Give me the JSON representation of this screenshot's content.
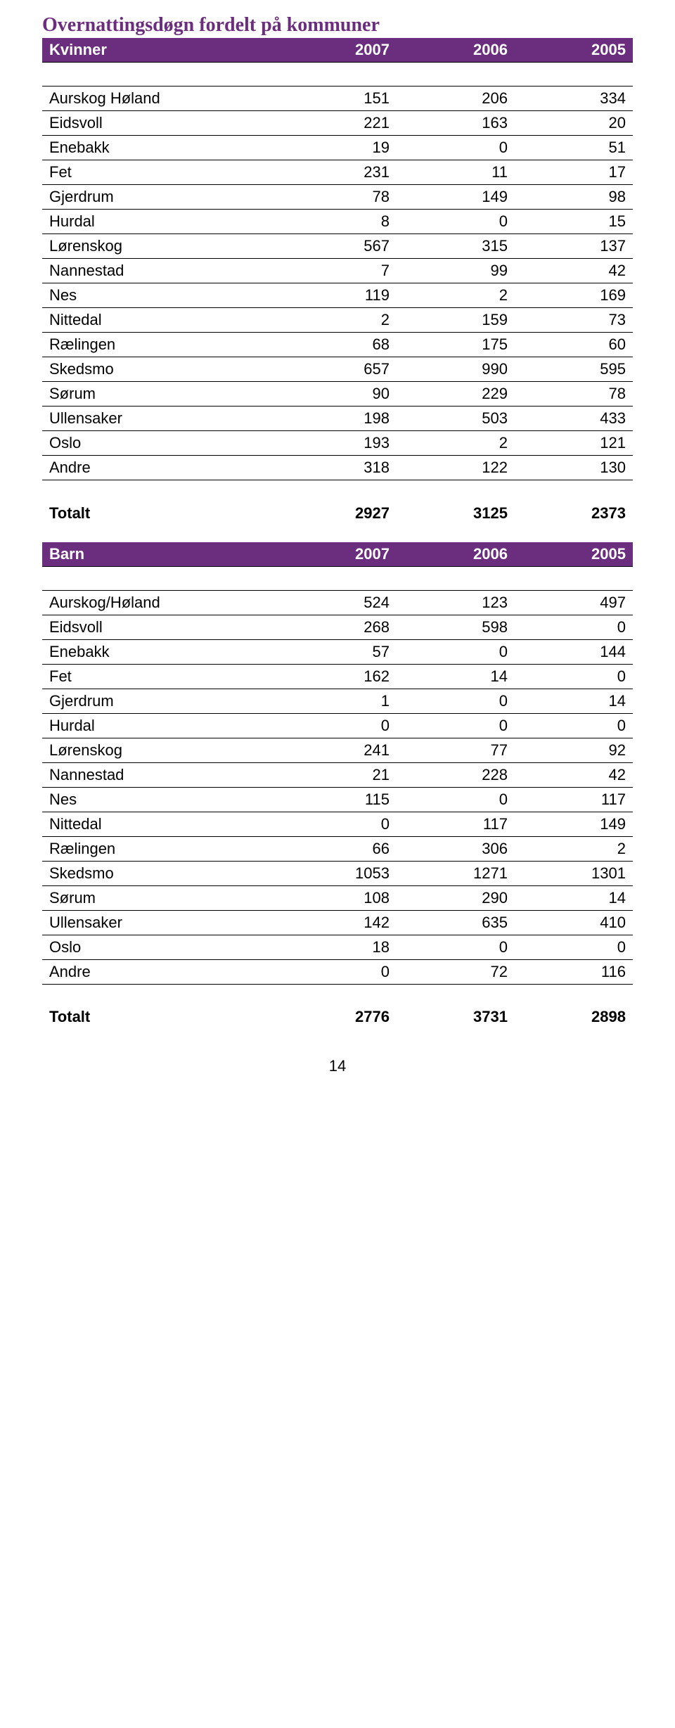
{
  "title": "Overnattingsdøgn fordelt på kommuner",
  "tables": [
    {
      "header": [
        "Kvinner",
        "2007",
        "2006",
        "2005"
      ],
      "rows": [
        [
          "Aurskog Høland",
          "151",
          "206",
          "334"
        ],
        [
          "Eidsvoll",
          "221",
          "163",
          "20"
        ],
        [
          "Enebakk",
          "19",
          "0",
          "51"
        ],
        [
          "Fet",
          "231",
          "11",
          "17"
        ],
        [
          "Gjerdrum",
          "78",
          "149",
          "98"
        ],
        [
          "Hurdal",
          "8",
          "0",
          "15"
        ],
        [
          "Lørenskog",
          "567",
          "315",
          "137"
        ],
        [
          "Nannestad",
          "7",
          "99",
          "42"
        ],
        [
          "Nes",
          "119",
          "2",
          "169"
        ],
        [
          "Nittedal",
          "2",
          "159",
          "73"
        ],
        [
          "Rælingen",
          "68",
          "175",
          "60"
        ],
        [
          "Skedsmo",
          "657",
          "990",
          "595"
        ],
        [
          "Sørum",
          "90",
          "229",
          "78"
        ],
        [
          "Ullensaker",
          "198",
          "503",
          "433"
        ],
        [
          "Oslo",
          "193",
          "2",
          "121"
        ],
        [
          "Andre",
          "318",
          "122",
          "130"
        ]
      ],
      "total": [
        "Totalt",
        "2927",
        "3125",
        "2373"
      ]
    },
    {
      "header": [
        "Barn",
        "2007",
        "2006",
        "2005"
      ],
      "rows": [
        [
          "Aurskog/Høland",
          "524",
          "123",
          "497"
        ],
        [
          "Eidsvoll",
          "268",
          "598",
          "0"
        ],
        [
          "Enebakk",
          "57",
          "0",
          "144"
        ],
        [
          "Fet",
          "162",
          "14",
          "0"
        ],
        [
          "Gjerdrum",
          "1",
          "0",
          "14"
        ],
        [
          "Hurdal",
          "0",
          "0",
          "0"
        ],
        [
          "Lørenskog",
          "241",
          "77",
          "92"
        ],
        [
          "Nannestad",
          "21",
          "228",
          "42"
        ],
        [
          "Nes",
          "115",
          "0",
          "117"
        ],
        [
          "Nittedal",
          "0",
          "117",
          "149"
        ],
        [
          "Rælingen",
          "66",
          "306",
          "2"
        ],
        [
          "Skedsmo",
          "1053",
          "1271",
          "1301"
        ],
        [
          "Sørum",
          "108",
          "290",
          "14"
        ],
        [
          "Ullensaker",
          "142",
          "635",
          "410"
        ],
        [
          "Oslo",
          "18",
          "0",
          "0"
        ],
        [
          "Andre",
          "0",
          "72",
          "116"
        ]
      ],
      "total": [
        "Totalt",
        "2776",
        "3731",
        "2898"
      ]
    }
  ],
  "page_number": "14"
}
